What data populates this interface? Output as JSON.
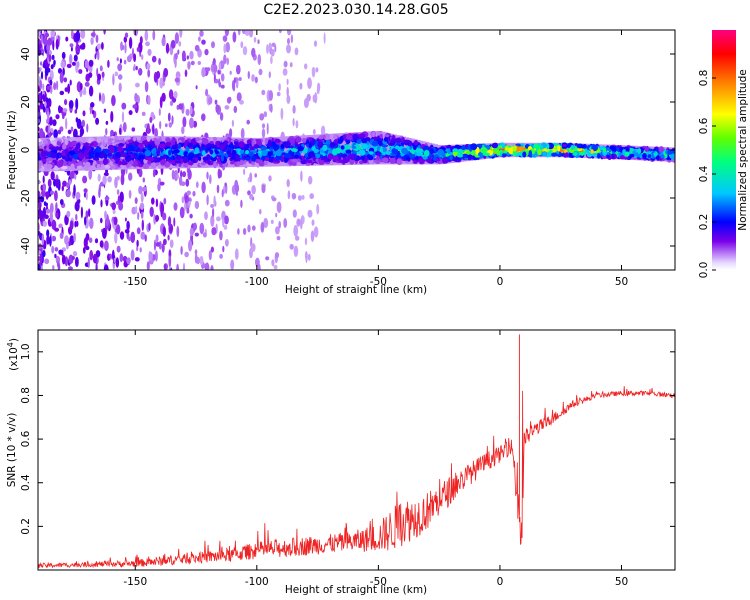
{
  "title": "C2E2.2023.030.14.28.G05",
  "chart_data": [
    {
      "type": "heatmap",
      "title": "C2E2.2023.030.14.28.G05",
      "xlabel": "Height of straight line (km)",
      "ylabel": "Frequency (Hz)",
      "xlim": [
        -190,
        72
      ],
      "ylim": [
        -50,
        50
      ],
      "xticks": [
        "-150",
        "-100",
        "-50",
        "0",
        "50"
      ],
      "xtick_values": [
        -150,
        -100,
        -50,
        0,
        50
      ],
      "yticks": [
        "-40",
        "-20",
        "0",
        "20",
        "40"
      ],
      "ytick_values": [
        -40,
        -20,
        0,
        20,
        40
      ],
      "colorbar": {
        "label": "Normalized spectral amplitude",
        "range": [
          0,
          1
        ],
        "ticks": [
          "0.0",
          "0.2",
          "0.4",
          "0.6",
          "0.8"
        ],
        "tick_values": [
          0,
          0.2,
          0.4,
          0.6,
          0.8
        ],
        "colormap": [
          "#ffffff",
          "#c8a8f0",
          "#6a00e0",
          "#0000ff",
          "#00c8ff",
          "#00ff80",
          "#80ff00",
          "#ffff00",
          "#ff8000",
          "#ff0000",
          "#ff0080"
        ]
      },
      "band": {
        "description_points_x": [
          -190,
          -150,
          -100,
          -50,
          -25,
          0,
          25,
          50,
          72
        ],
        "center_frequency_hz": [
          -2,
          -1,
          -1,
          1,
          -2,
          0,
          0,
          -1,
          -2
        ],
        "halfwidth_hz": [
          6,
          6,
          5,
          6,
          3,
          2,
          2,
          2,
          2
        ],
        "peak_amplitude": [
          0.2,
          0.28,
          0.35,
          0.4,
          0.45,
          0.9,
          0.85,
          0.5,
          0.45
        ]
      }
    },
    {
      "type": "line",
      "xlabel": "Height of straight line (km)",
      "ylabel": "SNR (10 * v/v)",
      "scale_label": "(x10",
      "scale_exponent": "4",
      "scale_suffix": ")",
      "xlim": [
        -190,
        72
      ],
      "ylim": [
        0,
        1.1
      ],
      "xticks": [
        "-150",
        "-100",
        "-50",
        "0",
        "50"
      ],
      "xtick_values": [
        -150,
        -100,
        -50,
        0,
        50
      ],
      "yticks": [
        "0.2",
        "0.4",
        "0.6",
        "0.8",
        "1.0"
      ],
      "ytick_values": [
        0.2,
        0.4,
        0.6,
        0.8,
        1.0
      ],
      "color": "#ee2222",
      "series": [
        {
          "name": "SNR",
          "x": [
            -190,
            -170,
            -150,
            -140,
            -130,
            -120,
            -110,
            -100,
            -90,
            -80,
            -70,
            -60,
            -50,
            -45,
            -40,
            -35,
            -30,
            -25,
            -20,
            -15,
            -10,
            -5,
            0,
            5,
            8,
            9,
            10,
            15,
            20,
            25,
            30,
            40,
            50,
            60,
            72
          ],
          "y": [
            0.02,
            0.025,
            0.03,
            0.04,
            0.05,
            0.06,
            0.07,
            0.09,
            0.1,
            0.11,
            0.12,
            0.13,
            0.15,
            0.18,
            0.22,
            0.24,
            0.27,
            0.32,
            0.37,
            0.42,
            0.46,
            0.5,
            0.53,
            0.57,
            0.25,
            0.2,
            0.6,
            0.65,
            0.68,
            0.72,
            0.76,
            0.8,
            0.81,
            0.81,
            0.8
          ],
          "spread": [
            0.02,
            0.02,
            0.03,
            0.04,
            0.04,
            0.05,
            0.06,
            0.07,
            0.08,
            0.08,
            0.08,
            0.09,
            0.12,
            0.18,
            0.2,
            0.18,
            0.16,
            0.14,
            0.12,
            0.1,
            0.09,
            0.08,
            0.07,
            0.06,
            0.3,
            0.5,
            0.08,
            0.06,
            0.05,
            0.04,
            0.03,
            0.02,
            0.02,
            0.02,
            0.02
          ]
        }
      ],
      "peak_annotation": {
        "x": 8,
        "y": 1.08
      }
    }
  ]
}
